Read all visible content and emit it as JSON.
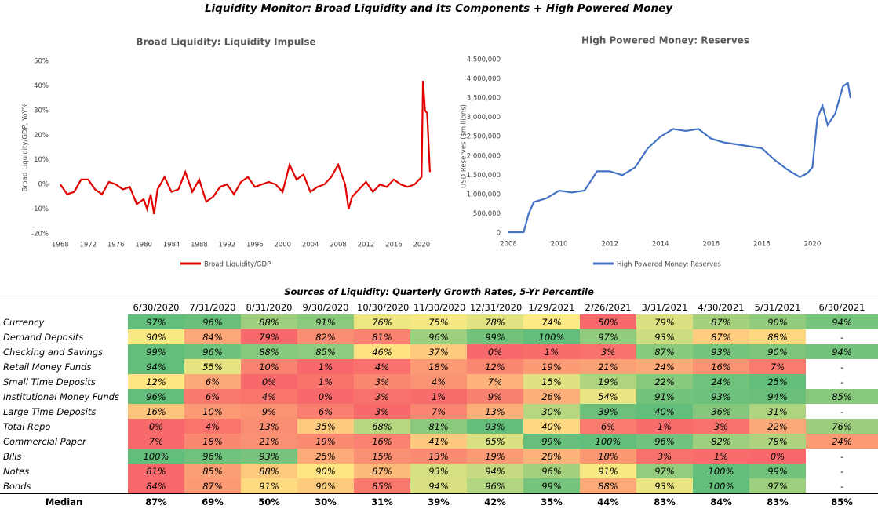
{
  "title": "Liquidity Monitor: Broad Liquidity and Its Components + High Powered Money",
  "chart_data": [
    {
      "type": "line",
      "title": "Broad Liquidity: Liquidity Impulse",
      "y_label": "Broad Liquidity/GDP, YoY%",
      "xlim": [
        1967,
        2022
      ],
      "xticks": [
        1968,
        1972,
        1976,
        1980,
        1984,
        1988,
        1992,
        1996,
        2000,
        2004,
        2008,
        2012,
        2016,
        2020
      ],
      "ylim": [
        -20,
        50
      ],
      "yticks": [
        {
          "value": -20,
          "label": "-20%"
        },
        {
          "value": -10,
          "label": "-10%"
        },
        {
          "value": 0,
          "label": "0%"
        },
        {
          "value": 10,
          "label": "10%"
        },
        {
          "value": 20,
          "label": "20%"
        },
        {
          "value": 30,
          "label": "30%"
        },
        {
          "value": 40,
          "label": "40%"
        },
        {
          "value": 50,
          "label": "50%"
        }
      ],
      "x": [
        1968,
        1969,
        1970,
        1971,
        1972,
        1973,
        1974,
        1975,
        1976,
        1977,
        1978,
        1979,
        1980,
        1980.5,
        1981,
        1981.5,
        1982,
        1983,
        1984,
        1985,
        1986,
        1987,
        1988,
        1989,
        1990,
        1991,
        1992,
        1993,
        1994,
        1995,
        1996,
        1997,
        1998,
        1999,
        2000,
        2001,
        2002,
        2003,
        2004,
        2005,
        2006,
        2007,
        2008,
        2009,
        2009.5,
        2010,
        2011,
        2012,
        2013,
        2014,
        2015,
        2016,
        2017,
        2018,
        2019,
        2020,
        2020.2,
        2020.5,
        2020.8,
        2021.2
      ],
      "series": [
        {
          "name": "Broad Liquidity/GDP",
          "color": "#e00000",
          "values": [
            0,
            -4,
            -3,
            2,
            2,
            -2,
            -4,
            1,
            0,
            -2,
            -1,
            -8,
            -6,
            -10,
            -4,
            -12,
            -2,
            3,
            -3,
            -2,
            5,
            -3,
            2,
            -7,
            -5,
            -1,
            0,
            -4,
            1,
            3,
            -1,
            0,
            1,
            0,
            -3,
            8,
            2,
            4,
            -3,
            -1,
            0,
            3,
            8,
            0,
            -10,
            -5,
            -2,
            1,
            -3,
            0,
            -1,
            2,
            0,
            -1,
            0,
            3,
            42,
            30,
            29,
            5
          ]
        }
      ]
    },
    {
      "type": "line",
      "title": "High Powered Money:  Reserves",
      "y_label": "USD Reserves ($millions)",
      "xlim": [
        2008,
        2022
      ],
      "xticks": [
        2008,
        2010,
        2012,
        2014,
        2016,
        2018,
        2020
      ],
      "ylim": [
        0,
        4500000
      ],
      "yticks": [
        0,
        {
          "value": 500000,
          "label": "500,000"
        },
        {
          "value": 1000000,
          "label": "1,000,000"
        },
        {
          "value": 1500000,
          "label": "1,500,000"
        },
        {
          "value": 2000000,
          "label": "2,000,000"
        },
        {
          "value": 2500000,
          "label": "2,500,000"
        },
        {
          "value": 3000000,
          "label": "3,000,000"
        },
        {
          "value": 3500000,
          "label": "3,500,000"
        },
        {
          "value": 4000000,
          "label": "4,000,000"
        },
        {
          "value": 4500000,
          "label": "4,500,000"
        }
      ],
      "x": [
        2008,
        2008.6,
        2008.8,
        2009,
        2009.5,
        2010,
        2010.5,
        2011,
        2011.5,
        2012,
        2012.5,
        2013,
        2013.5,
        2014,
        2014.5,
        2015,
        2015.5,
        2016,
        2016.5,
        2017,
        2017.5,
        2018,
        2018.5,
        2019,
        2019.5,
        2019.8,
        2020,
        2020.2,
        2020.4,
        2020.6,
        2020.9,
        2021.2,
        2021.4,
        2021.5
      ],
      "series": [
        {
          "name": "High Powered Money: Reserves",
          "color": "#4472c4",
          "values": [
            20000,
            20000,
            500000,
            800000,
            900000,
            1100000,
            1050000,
            1100000,
            1600000,
            1600000,
            1500000,
            1700000,
            2200000,
            2500000,
            2700000,
            2650000,
            2700000,
            2450000,
            2350000,
            2300000,
            2250000,
            2200000,
            1900000,
            1650000,
            1450000,
            1550000,
            1700000,
            3000000,
            3300000,
            2800000,
            3100000,
            3800000,
            3900000,
            3500000
          ]
        }
      ]
    }
  ],
  "table": {
    "title": "Sources of Liquidity: Quarterly Growth Rates, 5-Yr Percentile",
    "columns": [
      "6/30/2020",
      "7/31/2020",
      "8/31/2020",
      "9/30/2020",
      "10/30/2020",
      "11/30/2020",
      "12/31/2020",
      "1/29/2021",
      "2/26/2021",
      "3/31/2021",
      "4/30/2021",
      "5/31/2021",
      "6/30/2021"
    ],
    "rows": [
      {
        "label": "Currency",
        "cells": [
          "97%",
          "96%",
          "88%",
          "91%",
          "76%",
          "75%",
          "78%",
          "74%",
          "50%",
          "79%",
          "87%",
          "90%",
          "94%"
        ]
      },
      {
        "label": "Demand Deposits",
        "cells": [
          "90%",
          "84%",
          "79%",
          "82%",
          "81%",
          "96%",
          "99%",
          "100%",
          "97%",
          "93%",
          "87%",
          "88%",
          "-"
        ]
      },
      {
        "label": "Checking and Savings",
        "cells": [
          "99%",
          "96%",
          "88%",
          "85%",
          "46%",
          "37%",
          "0%",
          "1%",
          "3%",
          "87%",
          "93%",
          "90%",
          "94%"
        ]
      },
      {
        "label": "Retail Money Funds",
        "cells": [
          "94%",
          "55%",
          "10%",
          "1%",
          "4%",
          "18%",
          "12%",
          "19%",
          "21%",
          "24%",
          "16%",
          "7%",
          "-"
        ]
      },
      {
        "label": "Small Time Deposits",
        "cells": [
          "12%",
          "6%",
          "0%",
          "1%",
          "3%",
          "4%",
          "7%",
          "15%",
          "19%",
          "22%",
          "24%",
          "25%",
          "-"
        ]
      },
      {
        "label": "Institutional Money Funds",
        "cells": [
          "96%",
          "6%",
          "4%",
          "0%",
          "3%",
          "1%",
          "9%",
          "26%",
          "54%",
          "91%",
          "93%",
          "94%",
          "85%"
        ]
      },
      {
        "label": "Large Time Deposits",
        "cells": [
          "16%",
          "10%",
          "9%",
          "6%",
          "3%",
          "7%",
          "13%",
          "30%",
          "39%",
          "40%",
          "36%",
          "31%",
          "-"
        ]
      },
      {
        "label": "Total Repo",
        "cells": [
          "0%",
          "4%",
          "13%",
          "35%",
          "68%",
          "81%",
          "93%",
          "40%",
          "6%",
          "1%",
          "3%",
          "22%",
          "76%"
        ]
      },
      {
        "label": "Commercial Paper",
        "cells": [
          "7%",
          "18%",
          "21%",
          "19%",
          "16%",
          "41%",
          "65%",
          "99%",
          "100%",
          "96%",
          "82%",
          "78%",
          "24%"
        ]
      },
      {
        "label": "Bills",
        "cells": [
          "100%",
          "96%",
          "93%",
          "25%",
          "15%",
          "13%",
          "19%",
          "28%",
          "18%",
          "3%",
          "1%",
          "0%",
          "-"
        ]
      },
      {
        "label": "Notes",
        "cells": [
          "81%",
          "85%",
          "88%",
          "90%",
          "87%",
          "93%",
          "94%",
          "96%",
          "91%",
          "97%",
          "100%",
          "99%",
          "-"
        ]
      },
      {
        "label": "Bonds",
        "cells": [
          "84%",
          "87%",
          "91%",
          "90%",
          "85%",
          "94%",
          "96%",
          "99%",
          "88%",
          "93%",
          "100%",
          "97%",
          "-"
        ]
      }
    ],
    "median": {
      "label": "Median",
      "cells": [
        "87%",
        "69%",
        "50%",
        "30%",
        "31%",
        "39%",
        "42%",
        "35%",
        "44%",
        "83%",
        "84%",
        "83%",
        "85%"
      ]
    }
  }
}
